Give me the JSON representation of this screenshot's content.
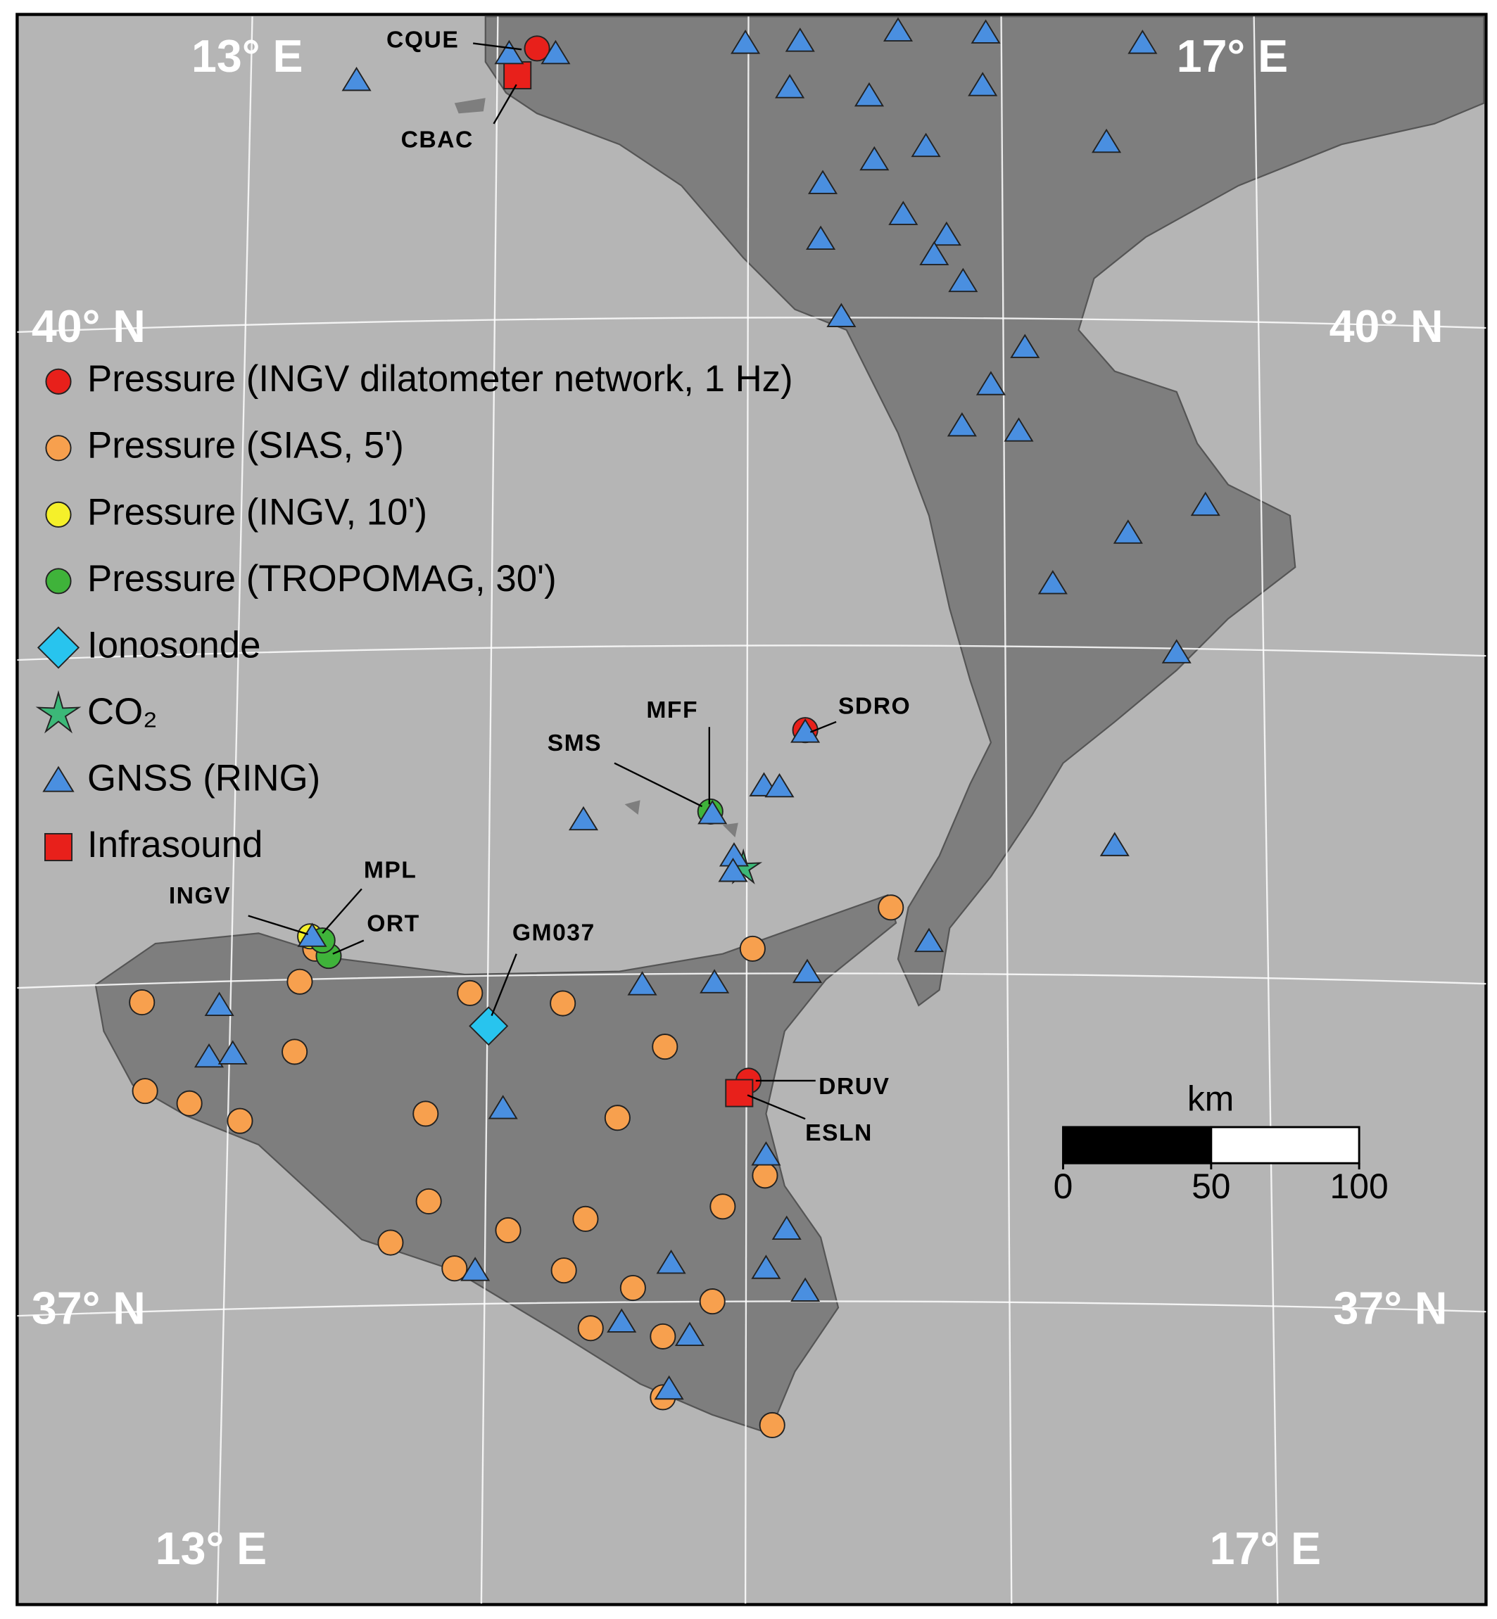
{
  "coordinates": {
    "top_left": "13° E",
    "top_right": "17° E",
    "left_upper": "40° N",
    "right_upper": "40° N",
    "left_lower": "37° N",
    "right_lower": "37° N",
    "bottom_left": "13° E",
    "bottom_right": "17° E"
  },
  "legend": [
    {
      "label": "Pressure (INGV dilatometer network, 1 Hz)",
      "symbol": "circle",
      "color": "#e8201b"
    },
    {
      "label": "Pressure (SIAS, 5')",
      "symbol": "circle",
      "color": "#f7a04e"
    },
    {
      "label": "Pressure (INGV, 10')",
      "symbol": "circle",
      "color": "#f5f02a"
    },
    {
      "label": "Pressure (TROPOMAG, 30')",
      "symbol": "circle",
      "color": "#3fb33a"
    },
    {
      "label": "Ionosonde",
      "symbol": "diamond",
      "color": "#28c4ee"
    },
    {
      "label": "CO₂",
      "symbol": "star",
      "color": "#3cb878"
    },
    {
      "label": "GNSS (RING)",
      "symbol": "triangle",
      "color": "#4a8fe0"
    },
    {
      "label": "Infrasound",
      "symbol": "square",
      "color": "#e8201b"
    }
  ],
  "stations": {
    "cque": "CQUE",
    "cbac": "CBAC",
    "sms": "SMS",
    "mff": "MFF",
    "sdro": "SDRO",
    "mpl": "MPL",
    "ingv": "INGV",
    "ort": "ORT",
    "gm037": "GM037",
    "druv": "DRUV",
    "esln": "ESLN"
  },
  "scale_bar": {
    "unit": "km",
    "ticks": [
      0,
      50,
      100
    ]
  }
}
